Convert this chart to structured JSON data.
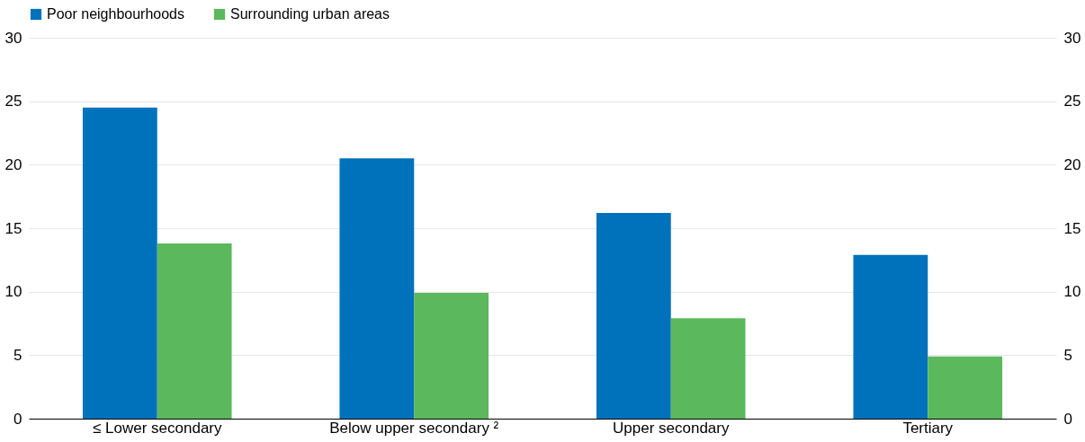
{
  "chart_data": {
    "type": "bar",
    "categories": [
      "≤ Lower secondary",
      "Below upper secondary ²",
      "Upper secondary",
      "Tertiary"
    ],
    "series": [
      {
        "name": "Poor neighbourhoods",
        "color": "#0072bc",
        "values": [
          24.5,
          20.5,
          16.2,
          12.9
        ]
      },
      {
        "name": "Surrounding urban areas",
        "color": "#5cb85c",
        "values": [
          13.8,
          9.9,
          7.9,
          4.9
        ]
      }
    ],
    "ylim": [
      0,
      30
    ],
    "yticks": [
      0,
      5,
      10,
      15,
      20,
      25,
      30
    ],
    "y2lim": [
      0,
      30
    ],
    "y2ticks": [
      0,
      5,
      10,
      15,
      20,
      25,
      30
    ],
    "grid": "y",
    "legend": "top"
  }
}
